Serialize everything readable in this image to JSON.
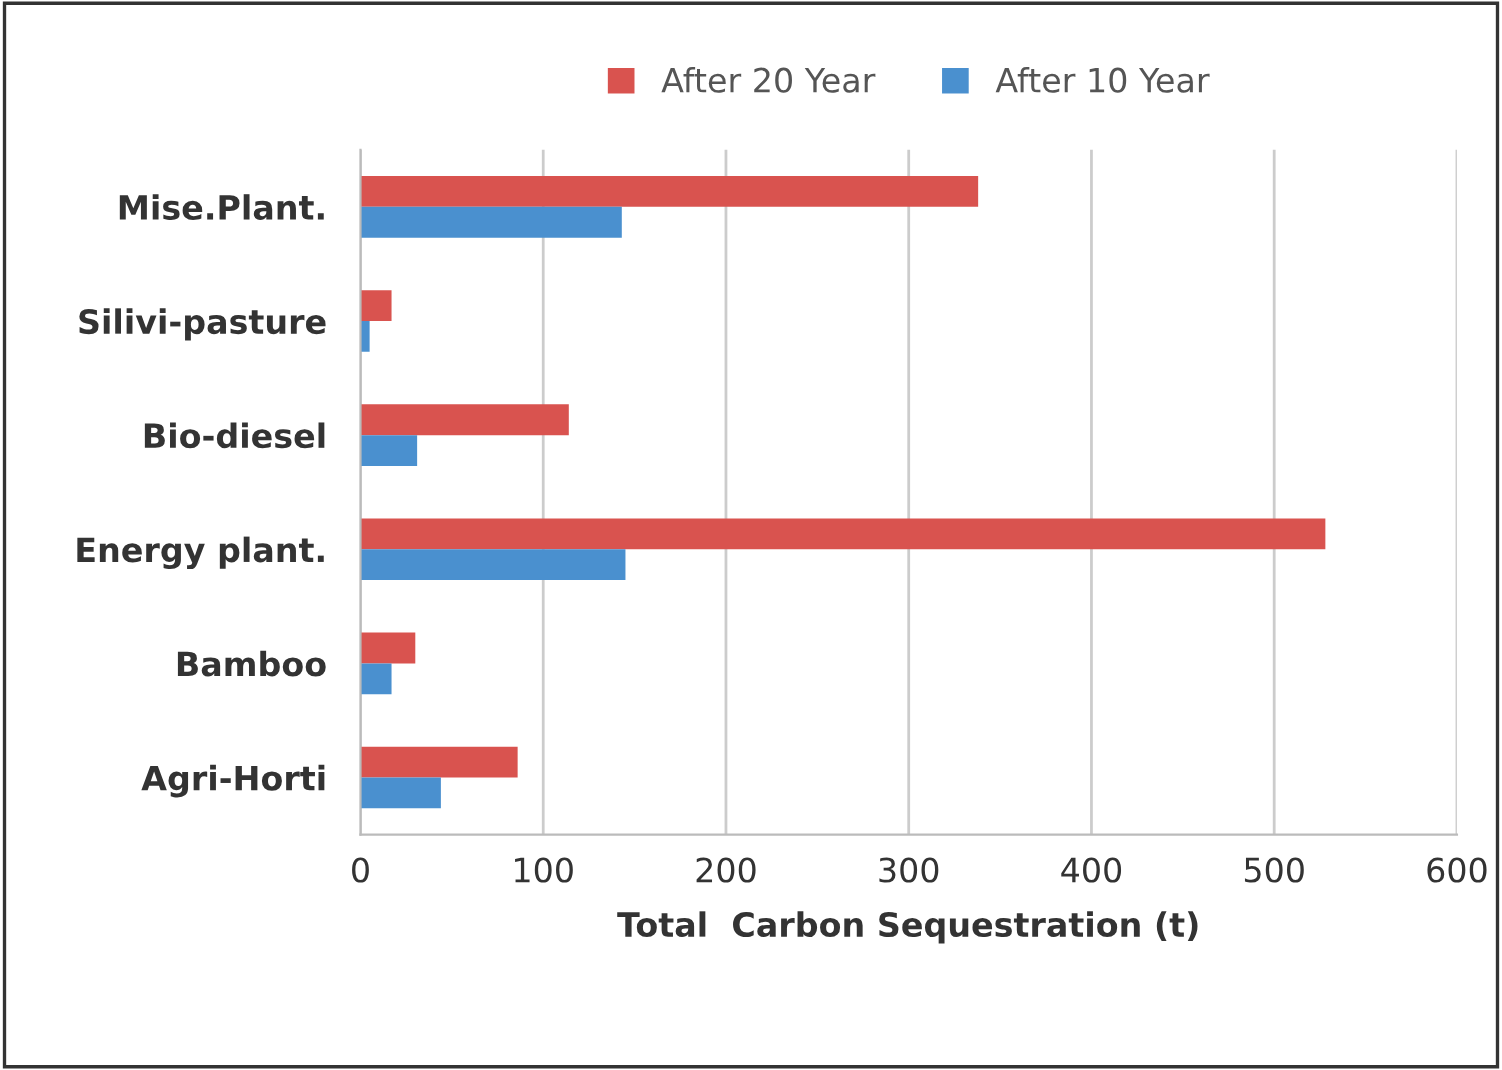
{
  "chart_data": {
    "type": "bar",
    "orientation": "horizontal",
    "xlabel": "Total  Carbon Sequestration (t)",
    "categories": [
      "Mise.Plant.",
      "Silivi-pasture",
      "Bio-diesel",
      "Energy plant.",
      "Bamboo",
      "Agri-Horti"
    ],
    "series": [
      {
        "name": "After 20 Year",
        "color": "#d9534f",
        "values": [
          338,
          17,
          114,
          528,
          30,
          86
        ]
      },
      {
        "name": "After 10 Year",
        "color": "#4a90cf",
        "values": [
          143,
          5,
          31,
          145,
          17,
          44
        ]
      }
    ],
    "xlim": [
      0,
      600
    ],
    "xticks": [
      0,
      100,
      200,
      300,
      400,
      500,
      600
    ],
    "grid": "x",
    "legend": "top"
  }
}
